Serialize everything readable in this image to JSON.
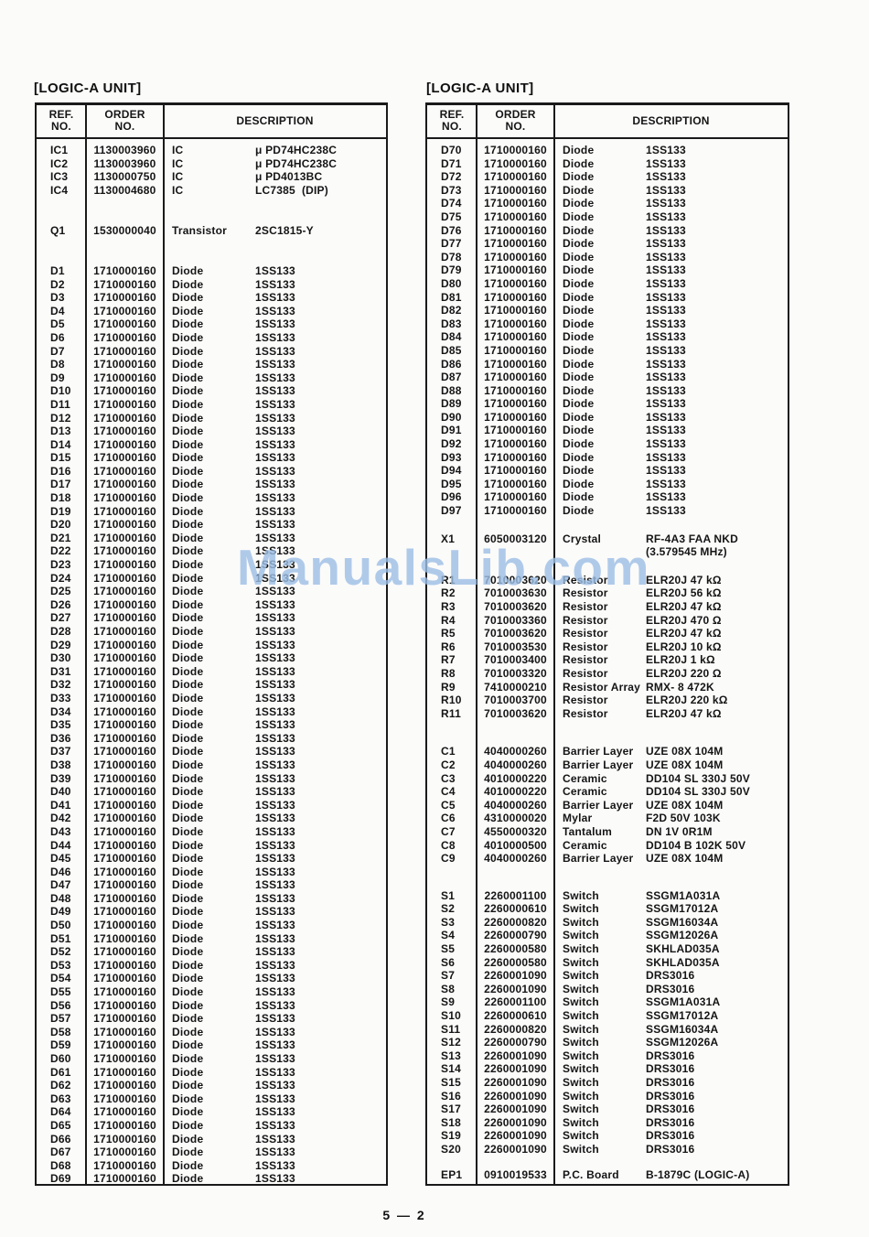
{
  "page": {
    "footer": "5 — 2",
    "watermark": "ManualsLib.com"
  },
  "colors": {
    "watermark": "#9dbfe6",
    "text": "#151515",
    "border": "#1a1a1a",
    "paper": "#fbfbfa"
  },
  "tables": {
    "left": {
      "title": "[LOGIC-A UNIT]",
      "headers": {
        "ref_line1": "REF.",
        "ref_line2": "NO.",
        "order_line1": "ORDER",
        "order_line2": "NO.",
        "description": "DESCRIPTION"
      },
      "columns": [
        "ref",
        "order",
        "type",
        "value"
      ],
      "groups": [
        {
          "name": "ics",
          "rows": [
            [
              "IC1",
              "1130003960",
              "IC",
              "μ PD74HC238C"
            ],
            [
              "IC2",
              "1130003960",
              "IC",
              "μ PD74HC238C"
            ],
            [
              "IC3",
              "1130000750",
              "IC",
              "μ PD4013BC"
            ],
            [
              "IC4",
              "1130004680",
              "IC",
              "LC7385  (DIP)"
            ]
          ]
        },
        {
          "name": "q",
          "rows": [
            [
              "Q1",
              "1530000040",
              "Transistor",
              "2SC1815-Y"
            ]
          ]
        },
        {
          "name": "d",
          "rows": [
            [
              "D1",
              "1710000160",
              "Diode",
              "1SS133"
            ],
            [
              "D2",
              "1710000160",
              "Diode",
              "1SS133"
            ],
            [
              "D3",
              "1710000160",
              "Diode",
              "1SS133"
            ],
            [
              "D4",
              "1710000160",
              "Diode",
              "1SS133"
            ],
            [
              "D5",
              "1710000160",
              "Diode",
              "1SS133"
            ],
            [
              "D6",
              "1710000160",
              "Diode",
              "1SS133"
            ],
            [
              "D7",
              "1710000160",
              "Diode",
              "1SS133"
            ],
            [
              "D8",
              "1710000160",
              "Diode",
              "1SS133"
            ],
            [
              "D9",
              "1710000160",
              "Diode",
              "1SS133"
            ],
            [
              "D10",
              "1710000160",
              "Diode",
              "1SS133"
            ],
            [
              "D11",
              "1710000160",
              "Diode",
              "1SS133"
            ],
            [
              "D12",
              "1710000160",
              "Diode",
              "1SS133"
            ],
            [
              "D13",
              "1710000160",
              "Diode",
              "1SS133"
            ],
            [
              "D14",
              "1710000160",
              "Diode",
              "1SS133"
            ],
            [
              "D15",
              "1710000160",
              "Diode",
              "1SS133"
            ],
            [
              "D16",
              "1710000160",
              "Diode",
              "1SS133"
            ],
            [
              "D17",
              "1710000160",
              "Diode",
              "1SS133"
            ],
            [
              "D18",
              "1710000160",
              "Diode",
              "1SS133"
            ],
            [
              "D19",
              "1710000160",
              "Diode",
              "1SS133"
            ],
            [
              "D20",
              "1710000160",
              "Diode",
              "1SS133"
            ],
            [
              "D21",
              "1710000160",
              "Diode",
              "1SS133"
            ],
            [
              "D22",
              "1710000160",
              "Diode",
              "1SS133"
            ],
            [
              "D23",
              "1710000160",
              "Diode",
              "1SS133"
            ],
            [
              "D24",
              "1710000160",
              "Diode",
              "1SS133"
            ],
            [
              "D25",
              "1710000160",
              "Diode",
              "1SS133"
            ],
            [
              "D26",
              "1710000160",
              "Diode",
              "1SS133"
            ],
            [
              "D27",
              "1710000160",
              "Diode",
              "1SS133"
            ],
            [
              "D28",
              "1710000160",
              "Diode",
              "1SS133"
            ],
            [
              "D29",
              "1710000160",
              "Diode",
              "1SS133"
            ],
            [
              "D30",
              "1710000160",
              "Diode",
              "1SS133"
            ],
            [
              "D31",
              "1710000160",
              "Diode",
              "1SS133"
            ],
            [
              "D32",
              "1710000160",
              "Diode",
              "1SS133"
            ],
            [
              "D33",
              "1710000160",
              "Diode",
              "1SS133"
            ],
            [
              "D34",
              "1710000160",
              "Diode",
              "1SS133"
            ],
            [
              "D35",
              "1710000160",
              "Diode",
              "1SS133"
            ],
            [
              "D36",
              "1710000160",
              "Diode",
              "1SS133"
            ],
            [
              "D37",
              "1710000160",
              "Diode",
              "1SS133"
            ],
            [
              "D38",
              "1710000160",
              "Diode",
              "1SS133"
            ],
            [
              "D39",
              "1710000160",
              "Diode",
              "1SS133"
            ],
            [
              "D40",
              "1710000160",
              "Diode",
              "1SS133"
            ],
            [
              "D41",
              "1710000160",
              "Diode",
              "1SS133"
            ],
            [
              "D42",
              "1710000160",
              "Diode",
              "1SS133"
            ],
            [
              "D43",
              "1710000160",
              "Diode",
              "1SS133"
            ],
            [
              "D44",
              "1710000160",
              "Diode",
              "1SS133"
            ],
            [
              "D45",
              "1710000160",
              "Diode",
              "1SS133"
            ],
            [
              "D46",
              "1710000160",
              "Diode",
              "1SS133"
            ],
            [
              "D47",
              "1710000160",
              "Diode",
              "1SS133"
            ],
            [
              "D48",
              "1710000160",
              "Diode",
              "1SS133"
            ],
            [
              "D49",
              "1710000160",
              "Diode",
              "1SS133"
            ],
            [
              "D50",
              "1710000160",
              "Diode",
              "1SS133"
            ],
            [
              "D51",
              "1710000160",
              "Diode",
              "1SS133"
            ],
            [
              "D52",
              "1710000160",
              "Diode",
              "1SS133"
            ],
            [
              "D53",
              "1710000160",
              "Diode",
              "1SS133"
            ],
            [
              "D54",
              "1710000160",
              "Diode",
              "1SS133"
            ],
            [
              "D55",
              "1710000160",
              "Diode",
              "1SS133"
            ],
            [
              "D56",
              "1710000160",
              "Diode",
              "1SS133"
            ],
            [
              "D57",
              "1710000160",
              "Diode",
              "1SS133"
            ],
            [
              "D58",
              "1710000160",
              "Diode",
              "1SS133"
            ],
            [
              "D59",
              "1710000160",
              "Diode",
              "1SS133"
            ],
            [
              "D60",
              "1710000160",
              "Diode",
              "1SS133"
            ],
            [
              "D61",
              "1710000160",
              "Diode",
              "1SS133"
            ],
            [
              "D62",
              "1710000160",
              "Diode",
              "1SS133"
            ],
            [
              "D63",
              "1710000160",
              "Diode",
              "1SS133"
            ],
            [
              "D64",
              "1710000160",
              "Diode",
              "1SS133"
            ],
            [
              "D65",
              "1710000160",
              "Diode",
              "1SS133"
            ],
            [
              "D66",
              "1710000160",
              "Diode",
              "1SS133"
            ],
            [
              "D67",
              "1710000160",
              "Diode",
              "1SS133"
            ],
            [
              "D68",
              "1710000160",
              "Diode",
              "1SS133"
            ],
            [
              "D69",
              "1710000160",
              "Diode",
              "1SS133"
            ]
          ]
        }
      ]
    },
    "right": {
      "title": "[LOGIC-A UNIT]",
      "headers": {
        "ref_line1": "REF.",
        "ref_line2": "NO.",
        "order_line1": "ORDER",
        "order_line2": "NO.",
        "description": "DESCRIPTION"
      },
      "columns": [
        "ref",
        "order",
        "type",
        "value"
      ],
      "groups": [
        {
          "name": "d2",
          "rows": [
            [
              "D70",
              "1710000160",
              "Diode",
              "1SS133"
            ],
            [
              "D71",
              "1710000160",
              "Diode",
              "1SS133"
            ],
            [
              "D72",
              "1710000160",
              "Diode",
              "1SS133"
            ],
            [
              "D73",
              "1710000160",
              "Diode",
              "1SS133"
            ],
            [
              "D74",
              "1710000160",
              "Diode",
              "1SS133"
            ],
            [
              "D75",
              "1710000160",
              "Diode",
              "1SS133"
            ],
            [
              "D76",
              "1710000160",
              "Diode",
              "1SS133"
            ],
            [
              "D77",
              "1710000160",
              "Diode",
              "1SS133"
            ],
            [
              "D78",
              "1710000160",
              "Diode",
              "1SS133"
            ],
            [
              "D79",
              "1710000160",
              "Diode",
              "1SS133"
            ],
            [
              "D80",
              "1710000160",
              "Diode",
              "1SS133"
            ],
            [
              "D81",
              "1710000160",
              "Diode",
              "1SS133"
            ],
            [
              "D82",
              "1710000160",
              "Diode",
              "1SS133"
            ],
            [
              "D83",
              "1710000160",
              "Diode",
              "1SS133"
            ],
            [
              "D84",
              "1710000160",
              "Diode",
              "1SS133"
            ],
            [
              "D85",
              "1710000160",
              "Diode",
              "1SS133"
            ],
            [
              "D86",
              "1710000160",
              "Diode",
              "1SS133"
            ],
            [
              "D87",
              "1710000160",
              "Diode",
              "1SS133"
            ],
            [
              "D88",
              "1710000160",
              "Diode",
              "1SS133"
            ],
            [
              "D89",
              "1710000160",
              "Diode",
              "1SS133"
            ],
            [
              "D90",
              "1710000160",
              "Diode",
              "1SS133"
            ],
            [
              "D91",
              "1710000160",
              "Diode",
              "1SS133"
            ],
            [
              "D92",
              "1710000160",
              "Diode",
              "1SS133"
            ],
            [
              "D93",
              "1710000160",
              "Diode",
              "1SS133"
            ],
            [
              "D94",
              "1710000160",
              "Diode",
              "1SS133"
            ],
            [
              "D95",
              "1710000160",
              "Diode",
              "1SS133"
            ],
            [
              "D96",
              "1710000160",
              "Diode",
              "1SS133"
            ],
            [
              "D97",
              "1710000160",
              "Diode",
              "1SS133"
            ]
          ]
        },
        {
          "name": "x1",
          "rows": [
            [
              "X1",
              "6050003120",
              "Crystal",
              "RF-4A3 FAA NKD"
            ],
            [
              "",
              "",
              "",
              "(3.579545 MHz)"
            ]
          ]
        },
        {
          "name": "r",
          "rows": [
            [
              "R1",
              "7010003620",
              "Resistor",
              "ELR20J 47 kΩ"
            ],
            [
              "R2",
              "7010003630",
              "Resistor",
              "ELR20J 56 kΩ"
            ],
            [
              "R3",
              "7010003620",
              "Resistor",
              "ELR20J 47 kΩ"
            ],
            [
              "R4",
              "7010003360",
              "Resistor",
              "ELR20J 470 Ω"
            ],
            [
              "R5",
              "7010003620",
              "Resistor",
              "ELR20J 47 kΩ"
            ],
            [
              "R6",
              "7010003530",
              "Resistor",
              "ELR20J 10 kΩ"
            ],
            [
              "R7",
              "7010003400",
              "Resistor",
              "ELR20J 1 kΩ"
            ],
            [
              "R8",
              "7010003320",
              "Resistor",
              "ELR20J 220 Ω"
            ],
            [
              "R9",
              "7410000210",
              "Resistor Array",
              "RMX- 8 472K"
            ],
            [
              "R10",
              "7010003700",
              "Resistor",
              "ELR20J 220 kΩ"
            ],
            [
              "R11",
              "7010003620",
              "Resistor",
              "ELR20J 47 kΩ"
            ]
          ]
        },
        {
          "name": "c",
          "rows": [
            [
              "C1",
              "4040000260",
              "Barrier Layer",
              "UZE 08X 104M"
            ],
            [
              "C2",
              "4040000260",
              "Barrier Layer",
              "UZE 08X 104M"
            ],
            [
              "C3",
              "4010000220",
              "Ceramic",
              "DD104 SL 330J 50V"
            ],
            [
              "C4",
              "4010000220",
              "Ceramic",
              "DD104 SL 330J 50V"
            ],
            [
              "C5",
              "4040000260",
              "Barrier Layer",
              "UZE 08X 104M"
            ],
            [
              "C6",
              "4310000020",
              "Mylar",
              "F2D 50V 103K"
            ],
            [
              "C7",
              "4550000320",
              "Tantalum",
              "DN 1V 0R1M"
            ],
            [
              "C8",
              "4010000500",
              "Ceramic",
              "DD104 B 102K 50V"
            ],
            [
              "C9",
              "4040000260",
              "Barrier Layer",
              "UZE 08X 104M"
            ]
          ]
        },
        {
          "name": "s",
          "rows": [
            [
              "S1",
              "2260001100",
              "Switch",
              "SSGM1A031A"
            ],
            [
              "S2",
              "2260000610",
              "Switch",
              "SSGM17012A"
            ],
            [
              "S3",
              "2260000820",
              "Switch",
              "SSGM16034A"
            ],
            [
              "S4",
              "2260000790",
              "Switch",
              "SSGM12026A"
            ],
            [
              "S5",
              "2260000580",
              "Switch",
              "SKHLAD035A"
            ],
            [
              "S6",
              "2260000580",
              "Switch",
              "SKHLAD035A"
            ],
            [
              "S7",
              "2260001090",
              "Switch",
              "DRS3016"
            ],
            [
              "S8",
              "2260001090",
              "Switch",
              "DRS3016"
            ],
            [
              "S9",
              "2260001100",
              "Switch",
              "SSGM1A031A"
            ],
            [
              "S10",
              "2260000610",
              "Switch",
              "SSGM17012A"
            ],
            [
              "S11",
              "2260000820",
              "Switch",
              "SSGM16034A"
            ],
            [
              "S12",
              "2260000790",
              "Switch",
              "SSGM12026A"
            ],
            [
              "S13",
              "2260001090",
              "Switch",
              "DRS3016"
            ],
            [
              "S14",
              "2260001090",
              "Switch",
              "DRS3016"
            ],
            [
              "S15",
              "2260001090",
              "Switch",
              "DRS3016"
            ],
            [
              "S16",
              "2260001090",
              "Switch",
              "DRS3016"
            ],
            [
              "S17",
              "2260001090",
              "Switch",
              "DRS3016"
            ],
            [
              "S18",
              "2260001090",
              "Switch",
              "DRS3016"
            ],
            [
              "S19",
              "2260001090",
              "Switch",
              "DRS3016"
            ],
            [
              "S20",
              "2260001090",
              "Switch",
              "DRS3016"
            ]
          ]
        },
        {
          "name": "ep",
          "rows": [
            [
              "EP1",
              "0910019533",
              "P.C. Board",
              "B-1879C (LOGIC-A)"
            ]
          ]
        }
      ]
    }
  }
}
